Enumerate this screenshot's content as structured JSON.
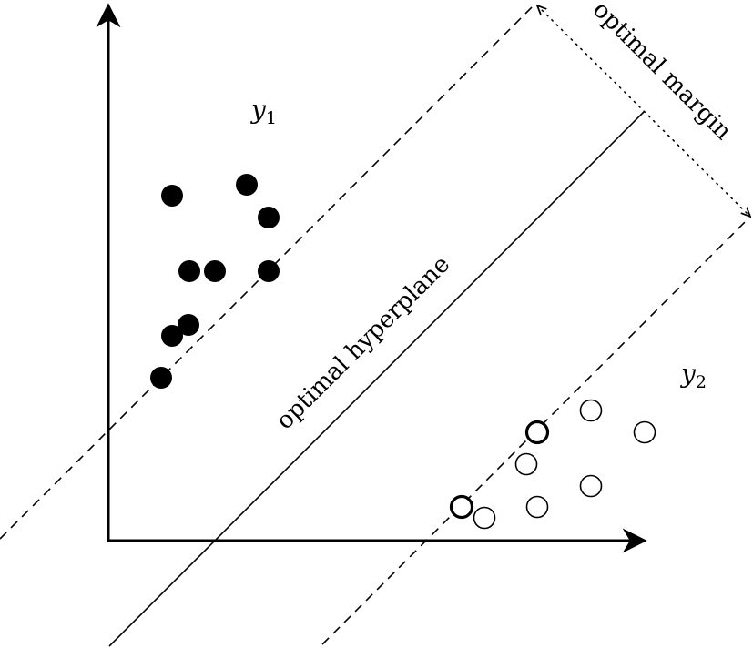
{
  "labels": {
    "class_top": "y",
    "class_top_subscript": "1",
    "class_bottom": "y",
    "class_bottom_subscript": "2",
    "hyperplane": "optimal hyperplane",
    "margin": "optimal margin"
  },
  "colors": {
    "ink": "#000000",
    "background": "#ffffff"
  },
  "legend": {
    "filled_points": "class y1 samples (filled circles)",
    "hollow_points": "class y2 samples (hollow circles, two bold support vectors)"
  },
  "icons": {
    "filled_point": "filled-circle",
    "hollow_point": "hollow-circle",
    "support_vector": "bold-hollow-circle"
  }
}
